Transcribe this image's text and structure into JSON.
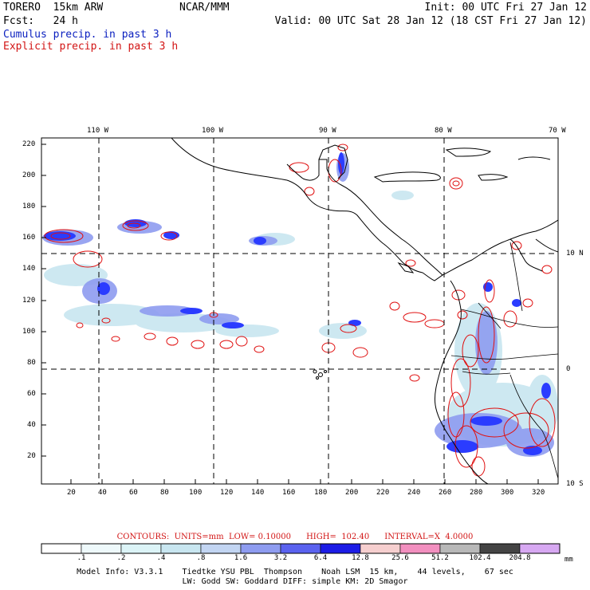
{
  "header": {
    "model": "TORERO  15km ARW",
    "org": "NCAR/MMM",
    "init": "Init: 00 UTC Fri 27 Jan 12",
    "fcst": "Fcst:   24 h",
    "valid": "Valid: 00 UTC Sat 28 Jan 12 (18 CST Fri 27 Jan 12)",
    "field1": "Cumulus precip. in past 3 h",
    "field2": "Explicit precip. in past 3 h"
  },
  "map": {
    "top_lon_labels": [
      "110 W",
      "100 W",
      "90 W",
      "80 W",
      "70 W"
    ],
    "left_y_labels": [
      "220",
      "200",
      "180",
      "160",
      "140",
      "120",
      "100",
      "80",
      "60",
      "40",
      "20"
    ],
    "bottom_x_labels": [
      "20",
      "40",
      "60",
      "80",
      "100",
      "120",
      "140",
      "160",
      "180",
      "200",
      "220",
      "240",
      "260",
      "280",
      "300",
      "320"
    ],
    "right_lat_labels": [
      "10 N",
      "0",
      "10 S"
    ],
    "colors": {
      "cumulus": "#2b3cff",
      "explicit": "#e01010",
      "coast": "#000000",
      "grid": "#000000"
    }
  },
  "contours_text": "CONTOURS:  UNITS=mm  LOW= 0.10000      HIGH=  102.40      INTERVAL=X  4.0000",
  "colorbar": {
    "labels": [
      ".1",
      ".2",
      ".4",
      ".8",
      "1.6",
      "3.2",
      "6.4",
      "12.8",
      "25.6",
      "51.2",
      "102.4",
      "204.8"
    ],
    "unit": "mm",
    "colors": [
      "#ffffff",
      "#eef9fb",
      "#dcf4f7",
      "#c8e6f0",
      "#c2d5f2",
      "#8e9cf0",
      "#5a62ef",
      "#1c1ce6",
      "#f6cfcf",
      "#f28fbf",
      "#b8b8b8",
      "#444444",
      "#d7a8f2"
    ]
  },
  "model_info": {
    "line1": "Model Info: V3.3.1    Tiedtke YSU PBL  Thompson    Noah LSM  15 km,    44 levels,    67 sec",
    "line2": "LW: Godd SW: Goddard DIFF: simple KM: 2D Smagor"
  }
}
